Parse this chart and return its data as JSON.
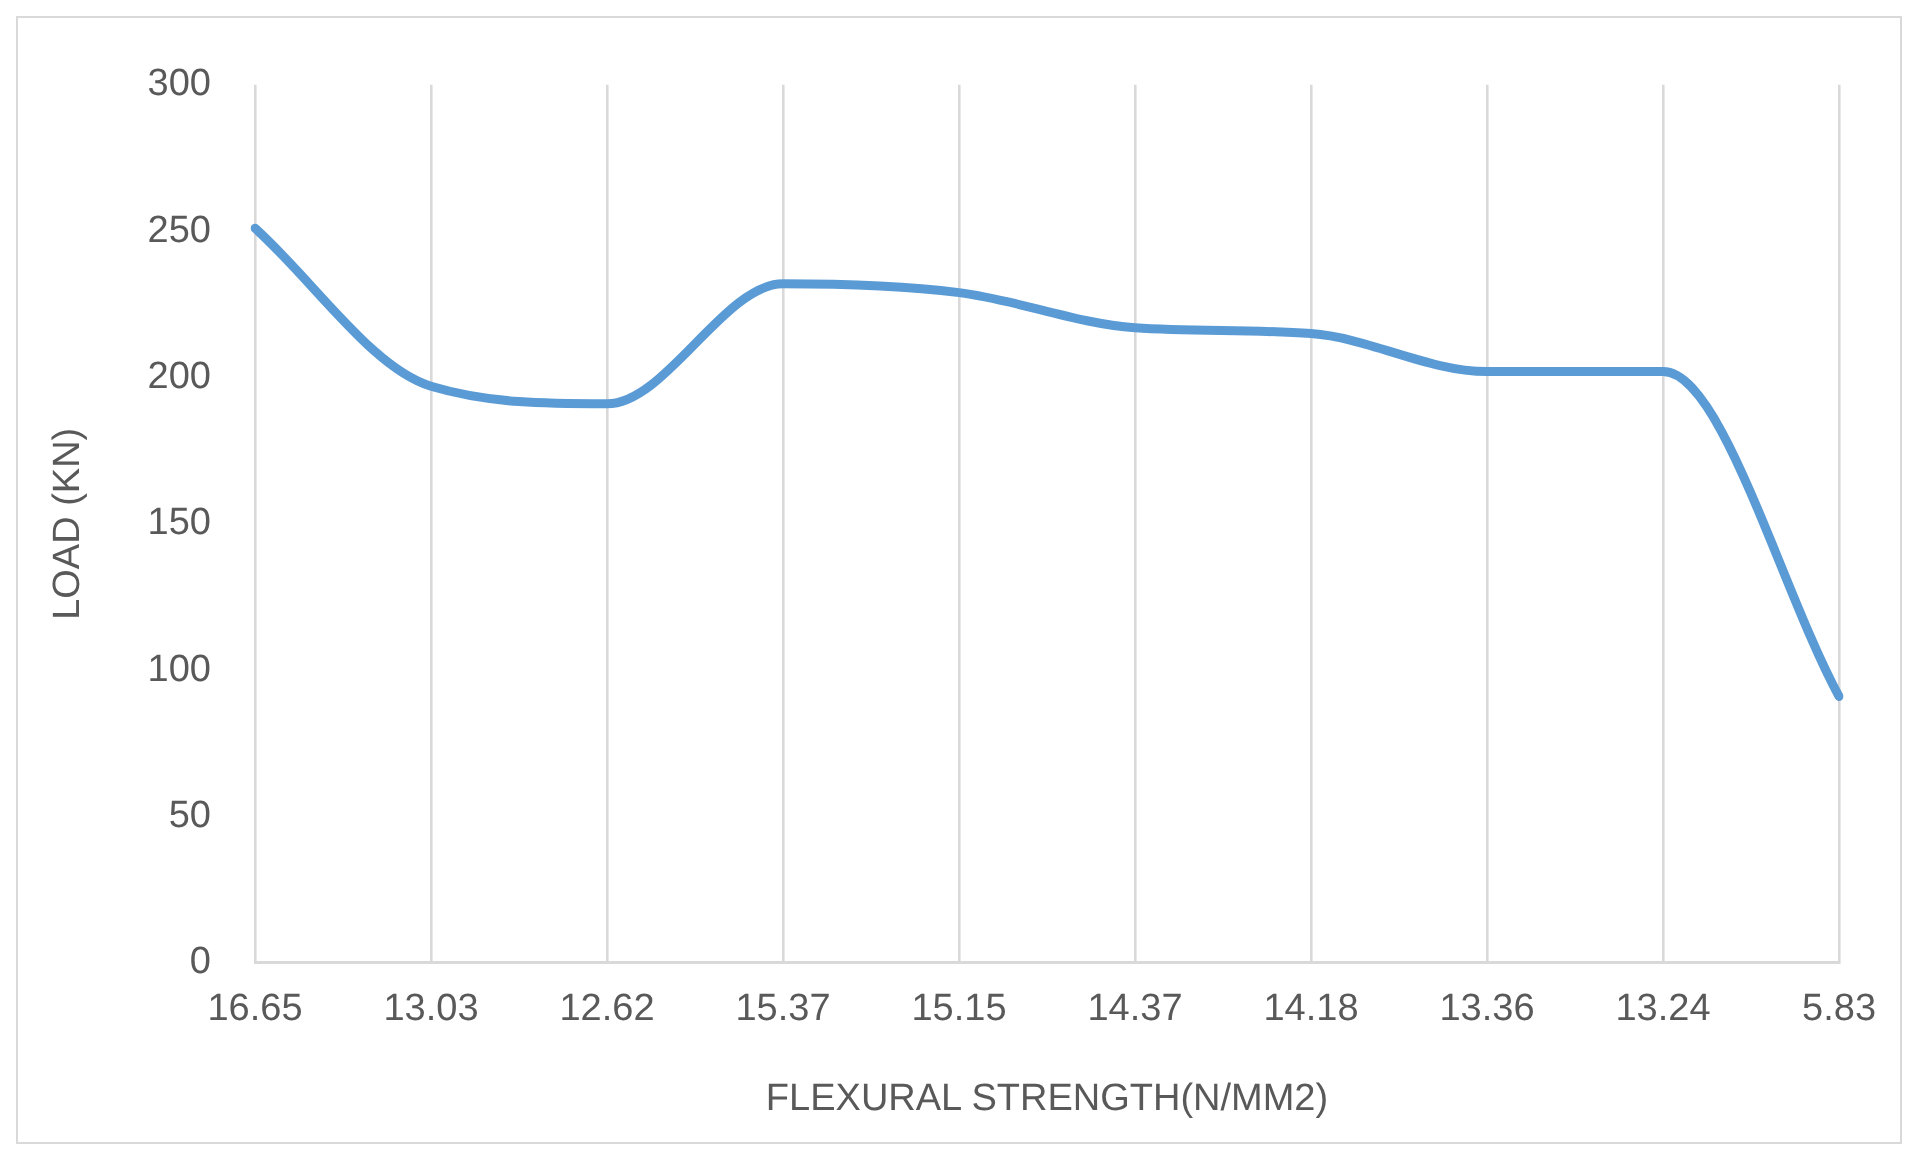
{
  "chart_data": {
    "type": "line",
    "xlabel": "FLEXURAL STRENGTH(N/MM2)",
    "ylabel": "LOAD (KN)",
    "categories": [
      "16.65",
      "13.03",
      "12.62",
      "15.37",
      "15.15",
      "14.37",
      "14.18",
      "13.36",
      "13.24",
      "5.83"
    ],
    "series": [
      {
        "color": "#5b9bd5",
        "values": [
          251,
          197,
          191,
          232,
          229,
          217,
          215,
          202,
          202,
          91
        ]
      }
    ],
    "ylim": [
      0,
      300
    ],
    "yticks": [
      0,
      50,
      100,
      150,
      200,
      250,
      300
    ],
    "grid": "x",
    "legend": false,
    "marker": "none"
  }
}
